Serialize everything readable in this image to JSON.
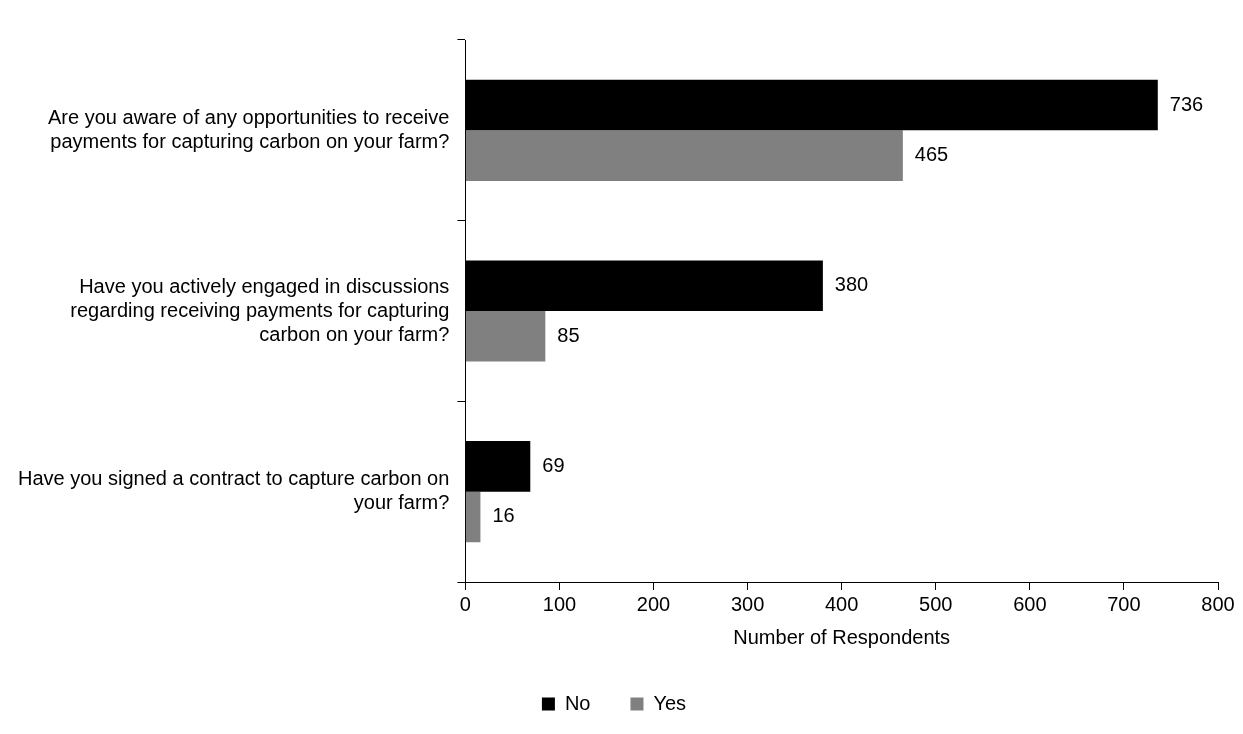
{
  "chart_data": {
    "type": "bar",
    "orientation": "horizontal",
    "categories": [
      "Are you aware of any opportunities to receive payments for capturing carbon on your farm?",
      "Have you actively engaged in discussions regarding receiving payments for capturing carbon on your farm?",
      "Have you signed a contract to capture carbon on your farm?"
    ],
    "series": [
      {
        "name": "No",
        "color": "#000000",
        "values": [
          736,
          380,
          69
        ]
      },
      {
        "name": "Yes",
        "color": "#808080",
        "values": [
          465,
          85,
          16
        ]
      }
    ],
    "xlim": [
      0,
      800
    ],
    "xticks": [
      0,
      100,
      200,
      300,
      400,
      500,
      600,
      700,
      800
    ],
    "xlabel": "Number of Respondents",
    "data_labels": true,
    "legend": "bottom",
    "grid": false
  }
}
